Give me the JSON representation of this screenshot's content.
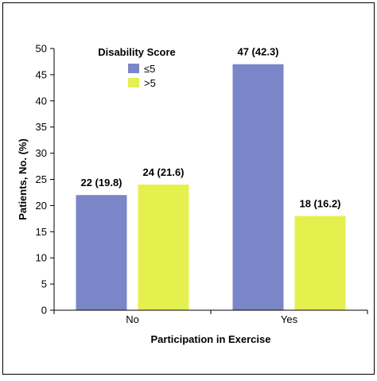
{
  "chart_data": {
    "type": "bar",
    "categories": [
      "No",
      "Yes"
    ],
    "series": [
      {
        "name": "≤5",
        "values": [
          22,
          47
        ],
        "labels": [
          "22 (19.8)",
          "47 (42.3)"
        ],
        "color": "#7b86c8"
      },
      {
        "name": ">5",
        "values": [
          24,
          18
        ],
        "labels": [
          "24 (21.6)",
          "18 (16.2)"
        ],
        "color": "#e4f04e"
      }
    ],
    "legend_title": "Disability Score",
    "legend_position": "top-left",
    "xlabel": "Participation in Exercise",
    "ylabel": "Patients, No. (%)",
    "ylim": [
      0,
      50
    ],
    "yticks": [
      0,
      5,
      10,
      15,
      20,
      25,
      30,
      35,
      40,
      45,
      50
    ],
    "grid": false
  }
}
